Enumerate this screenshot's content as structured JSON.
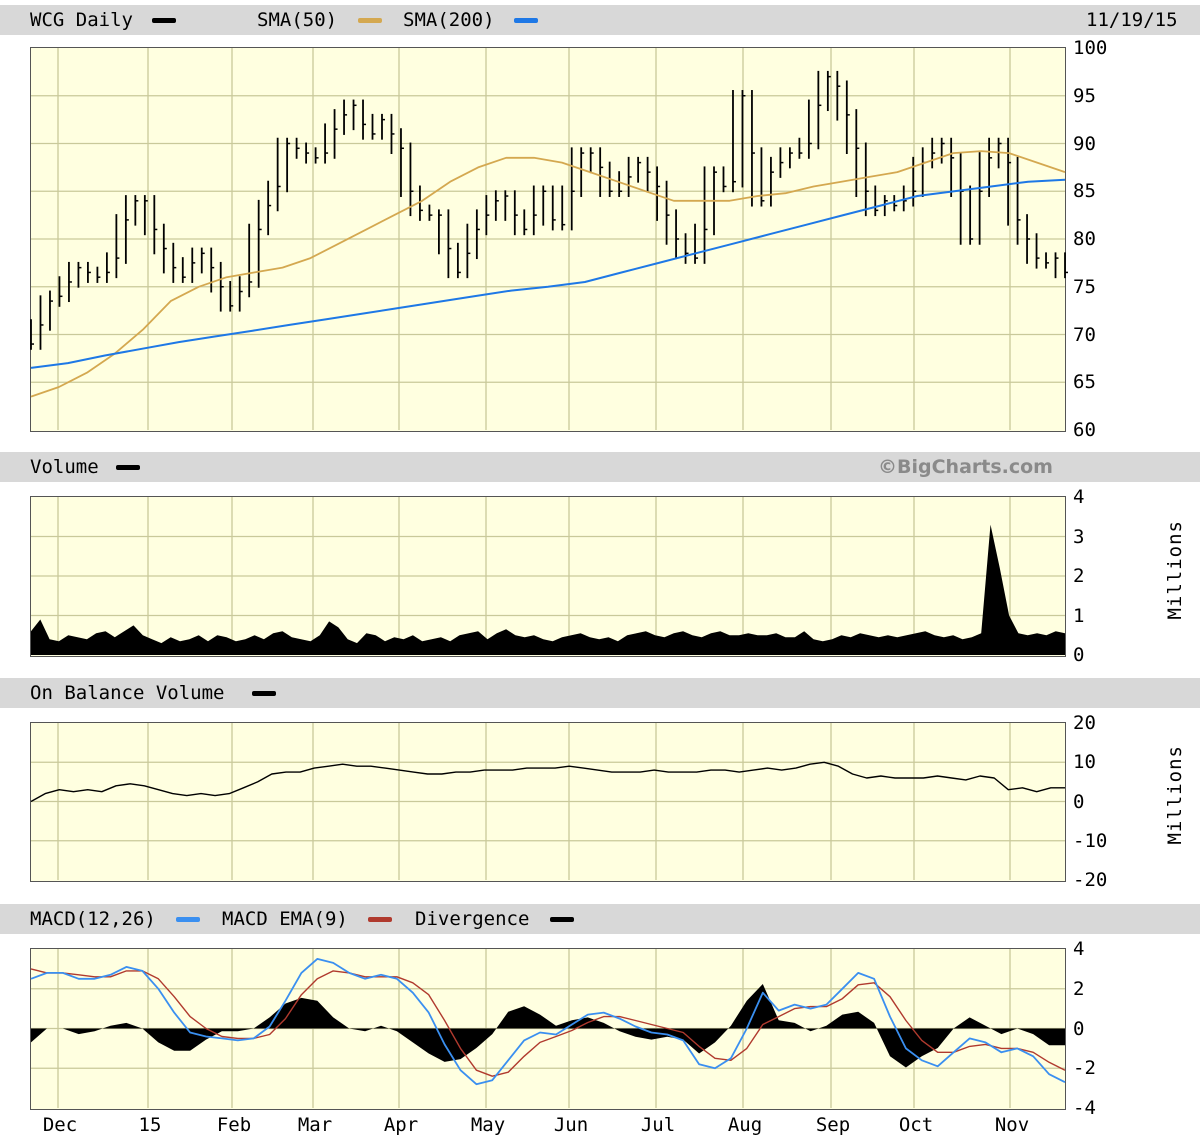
{
  "header": {
    "symbol_label": "WCG Daily",
    "sma50_label": "SMA(50)",
    "sma200_label": "SMA(200)",
    "date": "11/19/15"
  },
  "volume_panel": {
    "title": "Volume",
    "watermark": "©BigCharts.com",
    "unit": "Millions"
  },
  "obv_panel": {
    "title": "On Balance Volume",
    "unit": "Millions"
  },
  "macd_panel": {
    "title": "MACD(12,26)",
    "ema_label": "MACD EMA(9)",
    "div_label": "Divergence"
  },
  "colors": {
    "price": "#000000",
    "sma50": "#d4a850",
    "sma200": "#1e78e6",
    "macd": "#3a8ff0",
    "macd_ema": "#b03a2e",
    "volume": "#000000"
  },
  "chart_data": [
    {
      "type": "line",
      "title": "WCG Daily",
      "x_labels": [
        "Dec",
        "15",
        "Feb",
        "Mar",
        "Apr",
        "May",
        "Jun",
        "Jul",
        "Aug",
        "Sep",
        "Oct",
        "Nov"
      ],
      "y_ticks": [
        100,
        95,
        90,
        85,
        80,
        75,
        70,
        65,
        60
      ],
      "ylim": [
        60,
        100
      ],
      "series": [
        {
          "name": "WCG Daily",
          "style": "ohlc-bars",
          "values": [
            69,
            71,
            73.5,
            74,
            75.5,
            77,
            76.5,
            76,
            76.5,
            78,
            82,
            84,
            84,
            81,
            79,
            77,
            76,
            77.5,
            78.5,
            77,
            75,
            73,
            74.5,
            75.5,
            81,
            83.5,
            85.5,
            90,
            89.5,
            89,
            88.5,
            89,
            91.5,
            93,
            94,
            92,
            91,
            92.5,
            91,
            89.5,
            85,
            83,
            82.5,
            82.5,
            79,
            76.5,
            78.5,
            81,
            82.5,
            84,
            84.5,
            82.5,
            81,
            82.5,
            85,
            82,
            81.5,
            85,
            89,
            89,
            87.5,
            85,
            85,
            86.5,
            88,
            87,
            85.5,
            82.5,
            80,
            78.5,
            78,
            81,
            87,
            85.5,
            86,
            95,
            89,
            84,
            87,
            88,
            89,
            89,
            90,
            94,
            97,
            96,
            93,
            89.5,
            85,
            83,
            84,
            83.5,
            84,
            85,
            88,
            89,
            90,
            88.5,
            85,
            80,
            85,
            88.5,
            90,
            88,
            82,
            80,
            78,
            77.5,
            78,
            76.5
          ]
        },
        {
          "name": "SMA(50)",
          "values": [
            63.5,
            64.5,
            66,
            68,
            70.5,
            73.5,
            75,
            76,
            76.5,
            77,
            78,
            79.5,
            81,
            82.5,
            84,
            86,
            87.5,
            88.5,
            88.5,
            88,
            87,
            86,
            85,
            84,
            84,
            84,
            84.5,
            84.8,
            85.5,
            86,
            86.5,
            87,
            88,
            89,
            89.2,
            89,
            88,
            87
          ]
        },
        {
          "name": "SMA(200)",
          "values": [
            66.5,
            67,
            67.8,
            68.5,
            69.2,
            69.8,
            70.4,
            71,
            71.6,
            72.2,
            72.8,
            73.4,
            74,
            74.6,
            75,
            75.5,
            76.5,
            77.5,
            78.5,
            79.5,
            80.5,
            81.5,
            82.5,
            83.5,
            84.5,
            85,
            85.5,
            86,
            86.2
          ]
        }
      ]
    },
    {
      "type": "area",
      "title": "Volume",
      "ylabel": "Millions",
      "y_ticks": [
        4,
        3,
        2,
        1,
        0
      ],
      "ylim": [
        0,
        4
      ],
      "series": [
        {
          "name": "Volume",
          "values": [
            0.6,
            0.9,
            0.4,
            0.35,
            0.5,
            0.45,
            0.4,
            0.55,
            0.6,
            0.45,
            0.6,
            0.75,
            0.5,
            0.4,
            0.3,
            0.45,
            0.35,
            0.4,
            0.5,
            0.35,
            0.5,
            0.45,
            0.35,
            0.4,
            0.5,
            0.4,
            0.55,
            0.6,
            0.45,
            0.4,
            0.35,
            0.5,
            0.85,
            0.7,
            0.4,
            0.3,
            0.55,
            0.5,
            0.35,
            0.45,
            0.4,
            0.5,
            0.35,
            0.4,
            0.45,
            0.35,
            0.5,
            0.55,
            0.6,
            0.4,
            0.55,
            0.65,
            0.5,
            0.45,
            0.5,
            0.4,
            0.35,
            0.45,
            0.5,
            0.55,
            0.45,
            0.4,
            0.45,
            0.35,
            0.5,
            0.55,
            0.6,
            0.5,
            0.45,
            0.55,
            0.6,
            0.5,
            0.45,
            0.55,
            0.6,
            0.5,
            0.5,
            0.55,
            0.5,
            0.5,
            0.55,
            0.45,
            0.45,
            0.6,
            0.4,
            0.35,
            0.4,
            0.5,
            0.45,
            0.55,
            0.5,
            0.45,
            0.5,
            0.45,
            0.5,
            0.55,
            0.6,
            0.5,
            0.45,
            0.5,
            0.4,
            0.45,
            0.55,
            3.3,
            2.2,
            1.0,
            0.55,
            0.5,
            0.55,
            0.5,
            0.6,
            0.55
          ]
        }
      ]
    },
    {
      "type": "line",
      "title": "On Balance Volume",
      "ylabel": "Millions",
      "y_ticks": [
        20,
        10,
        0,
        -10,
        -20
      ],
      "ylim": [
        -20,
        20
      ],
      "series": [
        {
          "name": "On Balance Volume",
          "values": [
            0,
            2,
            3,
            2.5,
            3,
            2.5,
            4,
            4.5,
            4,
            3,
            2,
            1.5,
            2,
            1.5,
            2,
            3.5,
            5,
            7,
            7.5,
            7.5,
            8.5,
            9,
            9.5,
            9,
            9,
            8.5,
            8,
            7.5,
            7,
            7,
            7.5,
            7.5,
            8,
            8,
            8,
            8.5,
            8.5,
            8.5,
            9,
            8.5,
            8,
            7.5,
            7.5,
            7.5,
            8,
            7.5,
            7.5,
            7.5,
            8,
            8,
            7.5,
            8,
            8.5,
            8,
            8.5,
            9.5,
            10,
            9,
            7,
            6,
            6.5,
            6,
            6,
            6,
            6.5,
            6,
            5.5,
            6.5,
            6,
            3,
            3.5,
            2.5,
            3.5,
            3.5
          ]
        }
      ]
    },
    {
      "type": "line",
      "title": "MACD(12,26)",
      "x_labels": [
        "Dec",
        "15",
        "Feb",
        "Mar",
        "Apr",
        "May",
        "Jun",
        "Jul",
        "Aug",
        "Sep",
        "Oct",
        "Nov"
      ],
      "y_ticks": [
        4,
        2,
        0,
        -2,
        -4
      ],
      "ylim": [
        -4,
        4
      ],
      "series": [
        {
          "name": "MACD(12,26)",
          "values": [
            2.5,
            2.8,
            2.8,
            2.5,
            2.5,
            2.7,
            3.1,
            2.9,
            2.0,
            0.8,
            -0.2,
            -0.4,
            -0.5,
            -0.6,
            -0.5,
            0.1,
            1.4,
            2.8,
            3.5,
            3.3,
            2.8,
            2.5,
            2.7,
            2.5,
            1.8,
            0.8,
            -0.8,
            -2.1,
            -2.8,
            -2.6,
            -1.6,
            -0.6,
            -0.2,
            -0.3,
            0.2,
            0.7,
            0.8,
            0.5,
            0.1,
            -0.2,
            -0.3,
            -0.6,
            -1.8,
            -2.0,
            -1.5,
            0.0,
            1.8,
            0.9,
            1.2,
            1.0,
            1.2,
            2.0,
            2.8,
            2.5,
            0.6,
            -1.0,
            -1.6,
            -1.9,
            -1.2,
            -0.5,
            -0.7,
            -1.2,
            -1.0,
            -1.4,
            -2.3,
            -2.7
          ]
        },
        {
          "name": "MACD EMA(9)",
          "values": [
            3.0,
            2.8,
            2.8,
            2.7,
            2.6,
            2.6,
            2.9,
            2.9,
            2.5,
            1.6,
            0.6,
            0.0,
            -0.4,
            -0.5,
            -0.5,
            -0.3,
            0.5,
            1.7,
            2.5,
            2.9,
            2.8,
            2.6,
            2.6,
            2.6,
            2.3,
            1.7,
            0.4,
            -1.0,
            -2.1,
            -2.4,
            -2.2,
            -1.4,
            -0.7,
            -0.4,
            -0.1,
            0.3,
            0.6,
            0.6,
            0.4,
            0.2,
            0.0,
            -0.2,
            -0.9,
            -1.5,
            -1.6,
            -1.0,
            0.2,
            0.6,
            1.0,
            1.1,
            1.1,
            1.5,
            2.2,
            2.3,
            1.6,
            0.4,
            -0.6,
            -1.2,
            -1.2,
            -0.9,
            -0.8,
            -1.0,
            -1.0,
            -1.2,
            -1.7,
            -2.1
          ]
        }
      ]
    }
  ]
}
